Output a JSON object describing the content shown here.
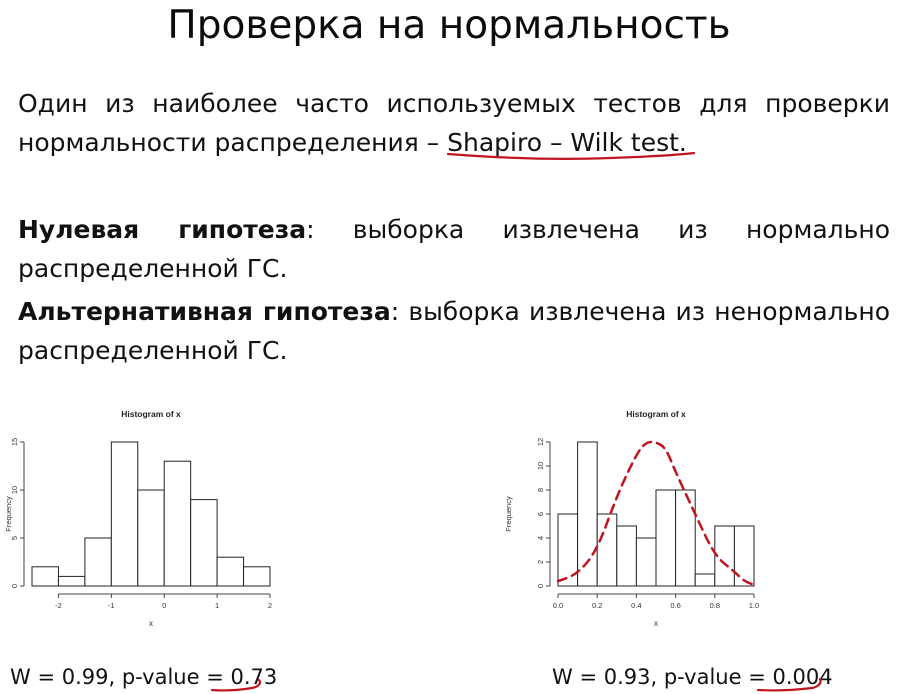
{
  "title": "Проверка на нормальность",
  "intro": {
    "text": "Один из наиболее часто используемых тестов для проверки нормальности распределения – ",
    "test_name": "Shapiro – Wilk test",
    "tail": "."
  },
  "null_hypothesis": {
    "label": "Нулевая гипотеза",
    "sep": ":",
    "text": " выборка извлечена из нормально распределенной ГС."
  },
  "alt_hypothesis": {
    "label": "Альтернативная гипотеза",
    "sep": ":",
    "text": " выборка извлечена из ненормально распределенной ГС."
  },
  "colors": {
    "annotation": "#c0141e",
    "bars": "#222222"
  },
  "stats": [
    {
      "prefix": "W = 0.99, p-value = ",
      "pvalue": "0.73"
    },
    {
      "prefix": "W = 0.93, p-value = ",
      "pvalue": "0.004"
    }
  ],
  "chart_data": [
    {
      "type": "bar",
      "title": "Histogram of x",
      "xlabel": "x",
      "ylabel": "Frequency",
      "bin_edges": [
        -2.5,
        -2.0,
        -1.5,
        -1.0,
        -0.5,
        0.0,
        0.5,
        1.0,
        1.5,
        2.0
      ],
      "values": [
        2,
        1,
        5,
        15,
        10,
        13,
        9,
        3,
        2
      ],
      "xlim": [
        -2.5,
        2.0
      ],
      "ylim": [
        0,
        15
      ],
      "xticks": [
        "-2",
        "-1",
        "0",
        "1",
        "2"
      ],
      "xtick_values": [
        -2,
        -1,
        0,
        1,
        2
      ],
      "yticks": [
        "0",
        "5",
        "10",
        "15"
      ],
      "ytick_values": [
        0,
        5,
        10,
        15
      ]
    },
    {
      "type": "bar",
      "title": "Histogram of x",
      "xlabel": "x",
      "ylabel": "Frequency",
      "bin_edges": [
        0.0,
        0.1,
        0.2,
        0.3,
        0.4,
        0.5,
        0.6,
        0.7,
        0.8,
        0.9,
        1.0
      ],
      "values": [
        6,
        12,
        6,
        5,
        4,
        8,
        8,
        1,
        5,
        5
      ],
      "xlim": [
        0.0,
        1.0
      ],
      "ylim": [
        0,
        12
      ],
      "xticks": [
        "0.0",
        "0.2",
        "0.4",
        "0.6",
        "0.8",
        "1.0"
      ],
      "xtick_values": [
        0.0,
        0.2,
        0.4,
        0.6,
        0.8,
        1.0
      ],
      "yticks": [
        "0",
        "2",
        "4",
        "6",
        "8",
        "10",
        "12"
      ],
      "ytick_values": [
        0,
        2,
        4,
        6,
        8,
        10,
        12
      ],
      "overlay_curve": {
        "style": "dashed",
        "points": [
          [
            0.0,
            0.4
          ],
          [
            0.1,
            1.0
          ],
          [
            0.2,
            3.0
          ],
          [
            0.3,
            7.5
          ],
          [
            0.4,
            11.0
          ],
          [
            0.45,
            12.0
          ],
          [
            0.5,
            12.0
          ],
          [
            0.55,
            11.5
          ],
          [
            0.6,
            9.5
          ],
          [
            0.7,
            6.0
          ],
          [
            0.8,
            2.5
          ],
          [
            0.9,
            1.2
          ],
          [
            0.95,
            0.4
          ],
          [
            1.0,
            0.1
          ]
        ]
      }
    }
  ]
}
